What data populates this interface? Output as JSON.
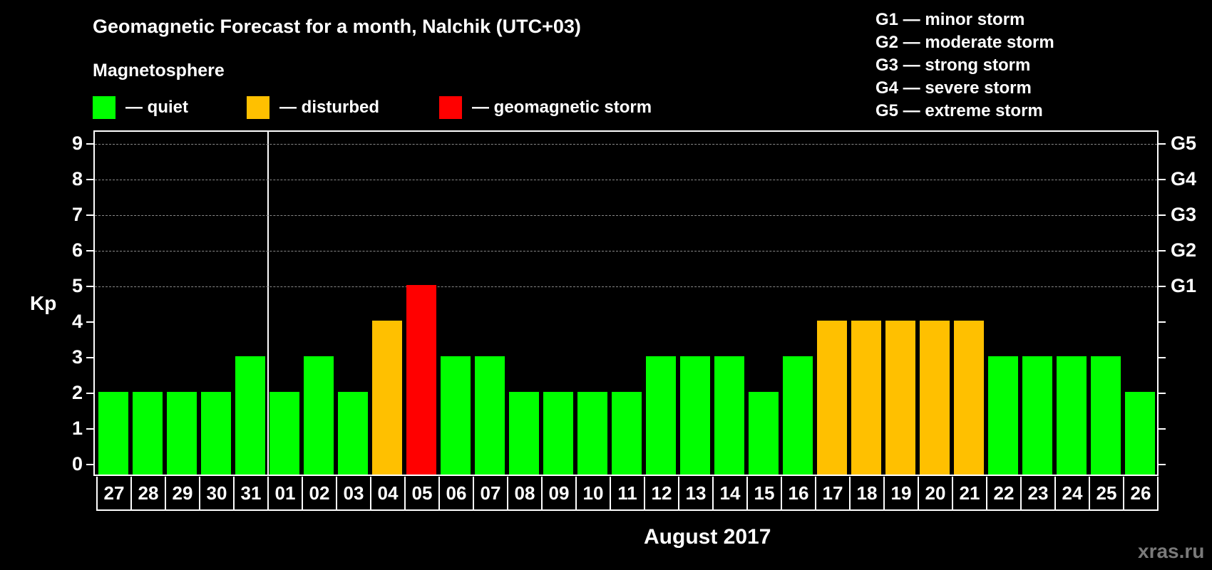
{
  "header": {
    "title": "Geomagnetic Forecast for a month, Nalchik (UTC+03)",
    "subtitle": "Magnetosphere"
  },
  "legend": [
    {
      "label": "— quiet",
      "color": "#00ff00"
    },
    {
      "label": "— disturbed",
      "color": "#ffc000"
    },
    {
      "label": "— geomagnetic storm",
      "color": "#ff0000"
    }
  ],
  "storm_scale": [
    "G1 — minor storm",
    "G2 — moderate storm",
    "G3 — strong storm",
    "G4 — severe storm",
    "G5 — extreme storm"
  ],
  "axis": {
    "ylabel": "Kp",
    "xlabel": "August 2017",
    "yticks": [
      "0",
      "1",
      "2",
      "3",
      "4",
      "5",
      "6",
      "7",
      "8",
      "9"
    ],
    "right_labels": [
      {
        "kp": 5,
        "label": "G1"
      },
      {
        "kp": 6,
        "label": "G2"
      },
      {
        "kp": 7,
        "label": "G3"
      },
      {
        "kp": 8,
        "label": "G4"
      },
      {
        "kp": 9,
        "label": "G5"
      }
    ]
  },
  "watermark": "xras.ru",
  "colors": {
    "quiet": "#00ff00",
    "disturbed": "#ffc000",
    "storm": "#ff0000",
    "grid": "#888888",
    "background": "#000000"
  },
  "chart_data": {
    "type": "bar",
    "title": "Geomagnetic Forecast for a month, Nalchik (UTC+03)",
    "xlabel": "August 2017",
    "ylabel": "Kp",
    "ylim": [
      0,
      9
    ],
    "grid": "dashed horizontal at Kp 5-9",
    "month_divider_after": "31",
    "categories": [
      "27",
      "28",
      "29",
      "30",
      "31",
      "01",
      "02",
      "03",
      "04",
      "05",
      "06",
      "07",
      "08",
      "09",
      "10",
      "11",
      "12",
      "13",
      "14",
      "15",
      "16",
      "17",
      "18",
      "19",
      "20",
      "21",
      "22",
      "23",
      "24",
      "25",
      "26"
    ],
    "values": [
      2,
      2,
      2,
      2,
      3,
      2,
      3,
      2,
      4,
      5,
      3,
      3,
      2,
      2,
      2,
      2,
      3,
      3,
      3,
      2,
      3,
      4,
      4,
      4,
      4,
      4,
      3,
      3,
      3,
      3,
      2
    ],
    "status": [
      "quiet",
      "quiet",
      "quiet",
      "quiet",
      "quiet",
      "quiet",
      "quiet",
      "quiet",
      "disturbed",
      "storm",
      "quiet",
      "quiet",
      "quiet",
      "quiet",
      "quiet",
      "quiet",
      "quiet",
      "quiet",
      "quiet",
      "quiet",
      "quiet",
      "disturbed",
      "disturbed",
      "disturbed",
      "disturbed",
      "disturbed",
      "quiet",
      "quiet",
      "quiet",
      "quiet",
      "quiet"
    ],
    "legend": [
      "quiet",
      "disturbed",
      "geomagnetic storm"
    ],
    "right_axis": {
      "5": "G1",
      "6": "G2",
      "7": "G3",
      "8": "G4",
      "9": "G5"
    }
  }
}
